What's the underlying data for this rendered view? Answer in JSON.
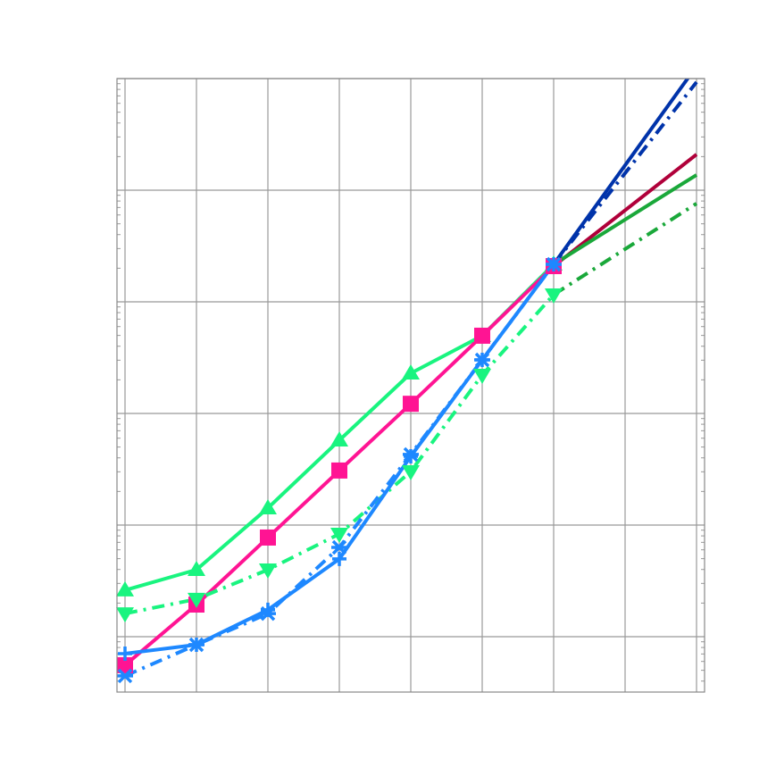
{
  "chart_data": {
    "type": "line",
    "title": "",
    "xlabel": "",
    "ylabel": "",
    "x": [
      0,
      1,
      2,
      3,
      4,
      5,
      6,
      7,
      8
    ],
    "xlim": [
      -0.1125,
      8.1125
    ],
    "yscale": "log",
    "ylim": [
      0.319,
      100000
    ],
    "grid": true,
    "tick_labels_shown": false,
    "series": [
      {
        "color": "#19f47f",
        "linestyle": "solid",
        "marker": "triangle-up",
        "x": [
          0,
          1,
          2,
          3,
          4,
          5,
          6
        ],
        "values": [
          2.61,
          3.98,
          14.2,
          57.5,
          229,
          497,
          2168
        ]
      },
      {
        "color": "#ff1493",
        "linestyle": "solid",
        "marker": "square",
        "x": [
          0,
          1,
          2,
          3,
          4,
          5,
          6
        ],
        "values": [
          0.555,
          1.94,
          7.73,
          30.8,
          122,
          497,
          2089
        ]
      },
      {
        "color": "#19f47f",
        "linestyle": "dashdot",
        "marker": "triangle-down",
        "x": [
          0,
          1,
          2,
          3,
          4,
          5,
          6
        ],
        "values": [
          1.61,
          2.17,
          3.98,
          8.32,
          30.2,
          221,
          1159
        ]
      },
      {
        "color": "#1e88ff",
        "linestyle": "solid",
        "marker": "plus",
        "x": [
          0,
          1,
          2,
          3,
          4,
          5,
          6
        ],
        "values": [
          0.705,
          0.847,
          1.74,
          4.97,
          41.3,
          302,
          2168
        ]
      },
      {
        "color": "#1e88ff",
        "linestyle": "dashdot",
        "marker": "x",
        "x": [
          0,
          1,
          2,
          3,
          4,
          5,
          6
        ],
        "values": [
          0.445,
          0.847,
          1.61,
          6.31,
          42.9,
          302,
          2168
        ]
      },
      {
        "color": "#0033aa",
        "linestyle": "solid",
        "marker": "none",
        "x": [
          6,
          8
        ],
        "values": [
          2168,
          129000
        ]
      },
      {
        "color": "#0033aa",
        "linestyle": "dashdot",
        "marker": "none",
        "x": [
          6,
          8
        ],
        "values": [
          2168,
          93000
        ]
      },
      {
        "color": "#b0003a",
        "linestyle": "solid",
        "marker": "none",
        "x": [
          6,
          8
        ],
        "values": [
          2089,
          20900
        ]
      },
      {
        "color": "#1aa83a",
        "linestyle": "solid",
        "marker": "none",
        "x": [
          6,
          8
        ],
        "values": [
          2168,
          13700
        ]
      },
      {
        "color": "#1aa83a",
        "linestyle": "dashdot",
        "marker": "none",
        "x": [
          6,
          8
        ],
        "values": [
          1159,
          7590
        ]
      }
    ]
  }
}
